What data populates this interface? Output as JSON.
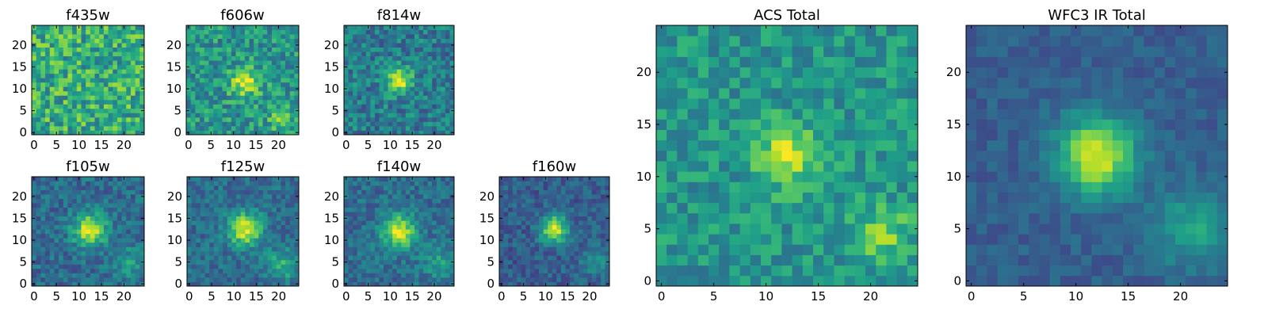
{
  "chart_data": {
    "type": "heatmap",
    "colormap": "viridis",
    "colormap_stops": [
      "#440154",
      "#482878",
      "#3e4989",
      "#31688e",
      "#26828e",
      "#1f9e89",
      "#35b779",
      "#6ece58",
      "#b5de2b",
      "#fde725"
    ],
    "grid": false,
    "image_size": [
      25,
      25
    ],
    "panels": [
      {
        "title": "f435w",
        "x_ticks": [
          0,
          5,
          10,
          15,
          20
        ],
        "y_ticks": [
          0,
          5,
          10,
          15,
          20
        ],
        "xlim": [
          -0.5,
          24.5
        ],
        "ylim": [
          -0.5,
          24.5
        ],
        "source": {
          "center": [
            12,
            12
          ],
          "sigma": 3.0,
          "amplitude": 0.0
        },
        "background": 0.62,
        "noise": 0.24,
        "seed": 11
      },
      {
        "title": "f606w",
        "x_ticks": [
          0,
          5,
          10,
          15,
          20
        ],
        "y_ticks": [
          0,
          5,
          10,
          15,
          20
        ],
        "xlim": [
          -0.5,
          24.5
        ],
        "ylim": [
          -0.5,
          24.5
        ],
        "source": {
          "center": [
            12.5,
            11.5
          ],
          "sigma": 2.2,
          "amplitude": 0.45
        },
        "secondary": {
          "center": [
            20.5,
            3.5
          ],
          "sigma": 2.0,
          "amplitude": 0.25
        },
        "background": 0.52,
        "noise": 0.2,
        "seed": 23
      },
      {
        "title": "f814w",
        "x_ticks": [
          0,
          5,
          10,
          15,
          20
        ],
        "y_ticks": [
          0,
          5,
          10,
          15,
          20
        ],
        "xlim": [
          -0.5,
          24.5
        ],
        "ylim": [
          -0.5,
          24.5
        ],
        "source": {
          "center": [
            12,
            12
          ],
          "sigma": 2.0,
          "amplitude": 0.55
        },
        "background": 0.42,
        "noise": 0.18,
        "seed": 37
      },
      {
        "title": "f105w",
        "x_ticks": [
          0,
          5,
          10,
          15,
          20
        ],
        "y_ticks": [
          0,
          5,
          10,
          15,
          20
        ],
        "xlim": [
          -0.5,
          24.5
        ],
        "ylim": [
          -0.5,
          24.5
        ],
        "source": {
          "center": [
            12.5,
            12.5
          ],
          "sigma": 2.6,
          "amplitude": 0.6
        },
        "secondary": {
          "center": [
            21,
            5
          ],
          "sigma": 2.4,
          "amplitude": 0.2
        },
        "background": 0.35,
        "noise": 0.14,
        "seed": 41
      },
      {
        "title": "f125w",
        "x_ticks": [
          0,
          5,
          10,
          15,
          20
        ],
        "y_ticks": [
          0,
          5,
          10,
          15,
          20
        ],
        "xlim": [
          -0.5,
          24.5
        ],
        "ylim": [
          -0.5,
          24.5
        ],
        "source": {
          "center": [
            12.5,
            12.5
          ],
          "sigma": 2.6,
          "amplitude": 0.6
        },
        "secondary": {
          "center": [
            21,
            4.5
          ],
          "sigma": 2.4,
          "amplitude": 0.28
        },
        "background": 0.36,
        "noise": 0.13,
        "seed": 53
      },
      {
        "title": "f140w",
        "x_ticks": [
          0,
          5,
          10,
          15,
          20
        ],
        "y_ticks": [
          0,
          5,
          10,
          15,
          20
        ],
        "xlim": [
          -0.5,
          24.5
        ],
        "ylim": [
          -0.5,
          24.5
        ],
        "source": {
          "center": [
            12,
            12
          ],
          "sigma": 2.7,
          "amplitude": 0.58
        },
        "secondary": {
          "center": [
            21,
            5
          ],
          "sigma": 2.4,
          "amplitude": 0.22
        },
        "background": 0.36,
        "noise": 0.13,
        "seed": 67
      },
      {
        "title": "f160w",
        "x_ticks": [
          0,
          5,
          10,
          15,
          20
        ],
        "y_ticks": [
          0,
          5,
          10,
          15,
          20
        ],
        "xlim": [
          -0.5,
          24.5
        ],
        "ylim": [
          -0.5,
          24.5
        ],
        "source": {
          "center": [
            12,
            12.5
          ],
          "sigma": 2.2,
          "amplitude": 0.62
        },
        "secondary": {
          "center": [
            21,
            5
          ],
          "sigma": 2.4,
          "amplitude": 0.18
        },
        "background": 0.3,
        "noise": 0.12,
        "seed": 79
      },
      {
        "title": "ACS Total",
        "x_ticks": [
          0,
          5,
          10,
          15,
          20
        ],
        "y_ticks": [
          0,
          5,
          10,
          15,
          20
        ],
        "xlim": [
          -0.5,
          24.5
        ],
        "ylim": [
          -0.5,
          24.5
        ],
        "source": {
          "center": [
            12,
            12
          ],
          "sigma": 2.0,
          "amplitude": 0.42
        },
        "secondary": {
          "center": [
            21,
            4.5
          ],
          "sigma": 1.8,
          "amplitude": 0.3
        },
        "background": 0.52,
        "noise": 0.15,
        "seed": 97
      },
      {
        "title": "WFC3 IR Total",
        "x_ticks": [
          0,
          5,
          10,
          15,
          20
        ],
        "y_ticks": [
          0,
          5,
          10,
          15,
          20
        ],
        "xlim": [
          -0.5,
          24.5
        ],
        "ylim": [
          -0.5,
          24.5
        ],
        "source": {
          "center": [
            12,
            12
          ],
          "sigma": 2.6,
          "amplitude": 0.65
        },
        "secondary": {
          "center": [
            21,
            5
          ],
          "sigma": 2.6,
          "amplitude": 0.28
        },
        "background": 0.3,
        "noise": 0.07,
        "seed": 113
      }
    ]
  }
}
